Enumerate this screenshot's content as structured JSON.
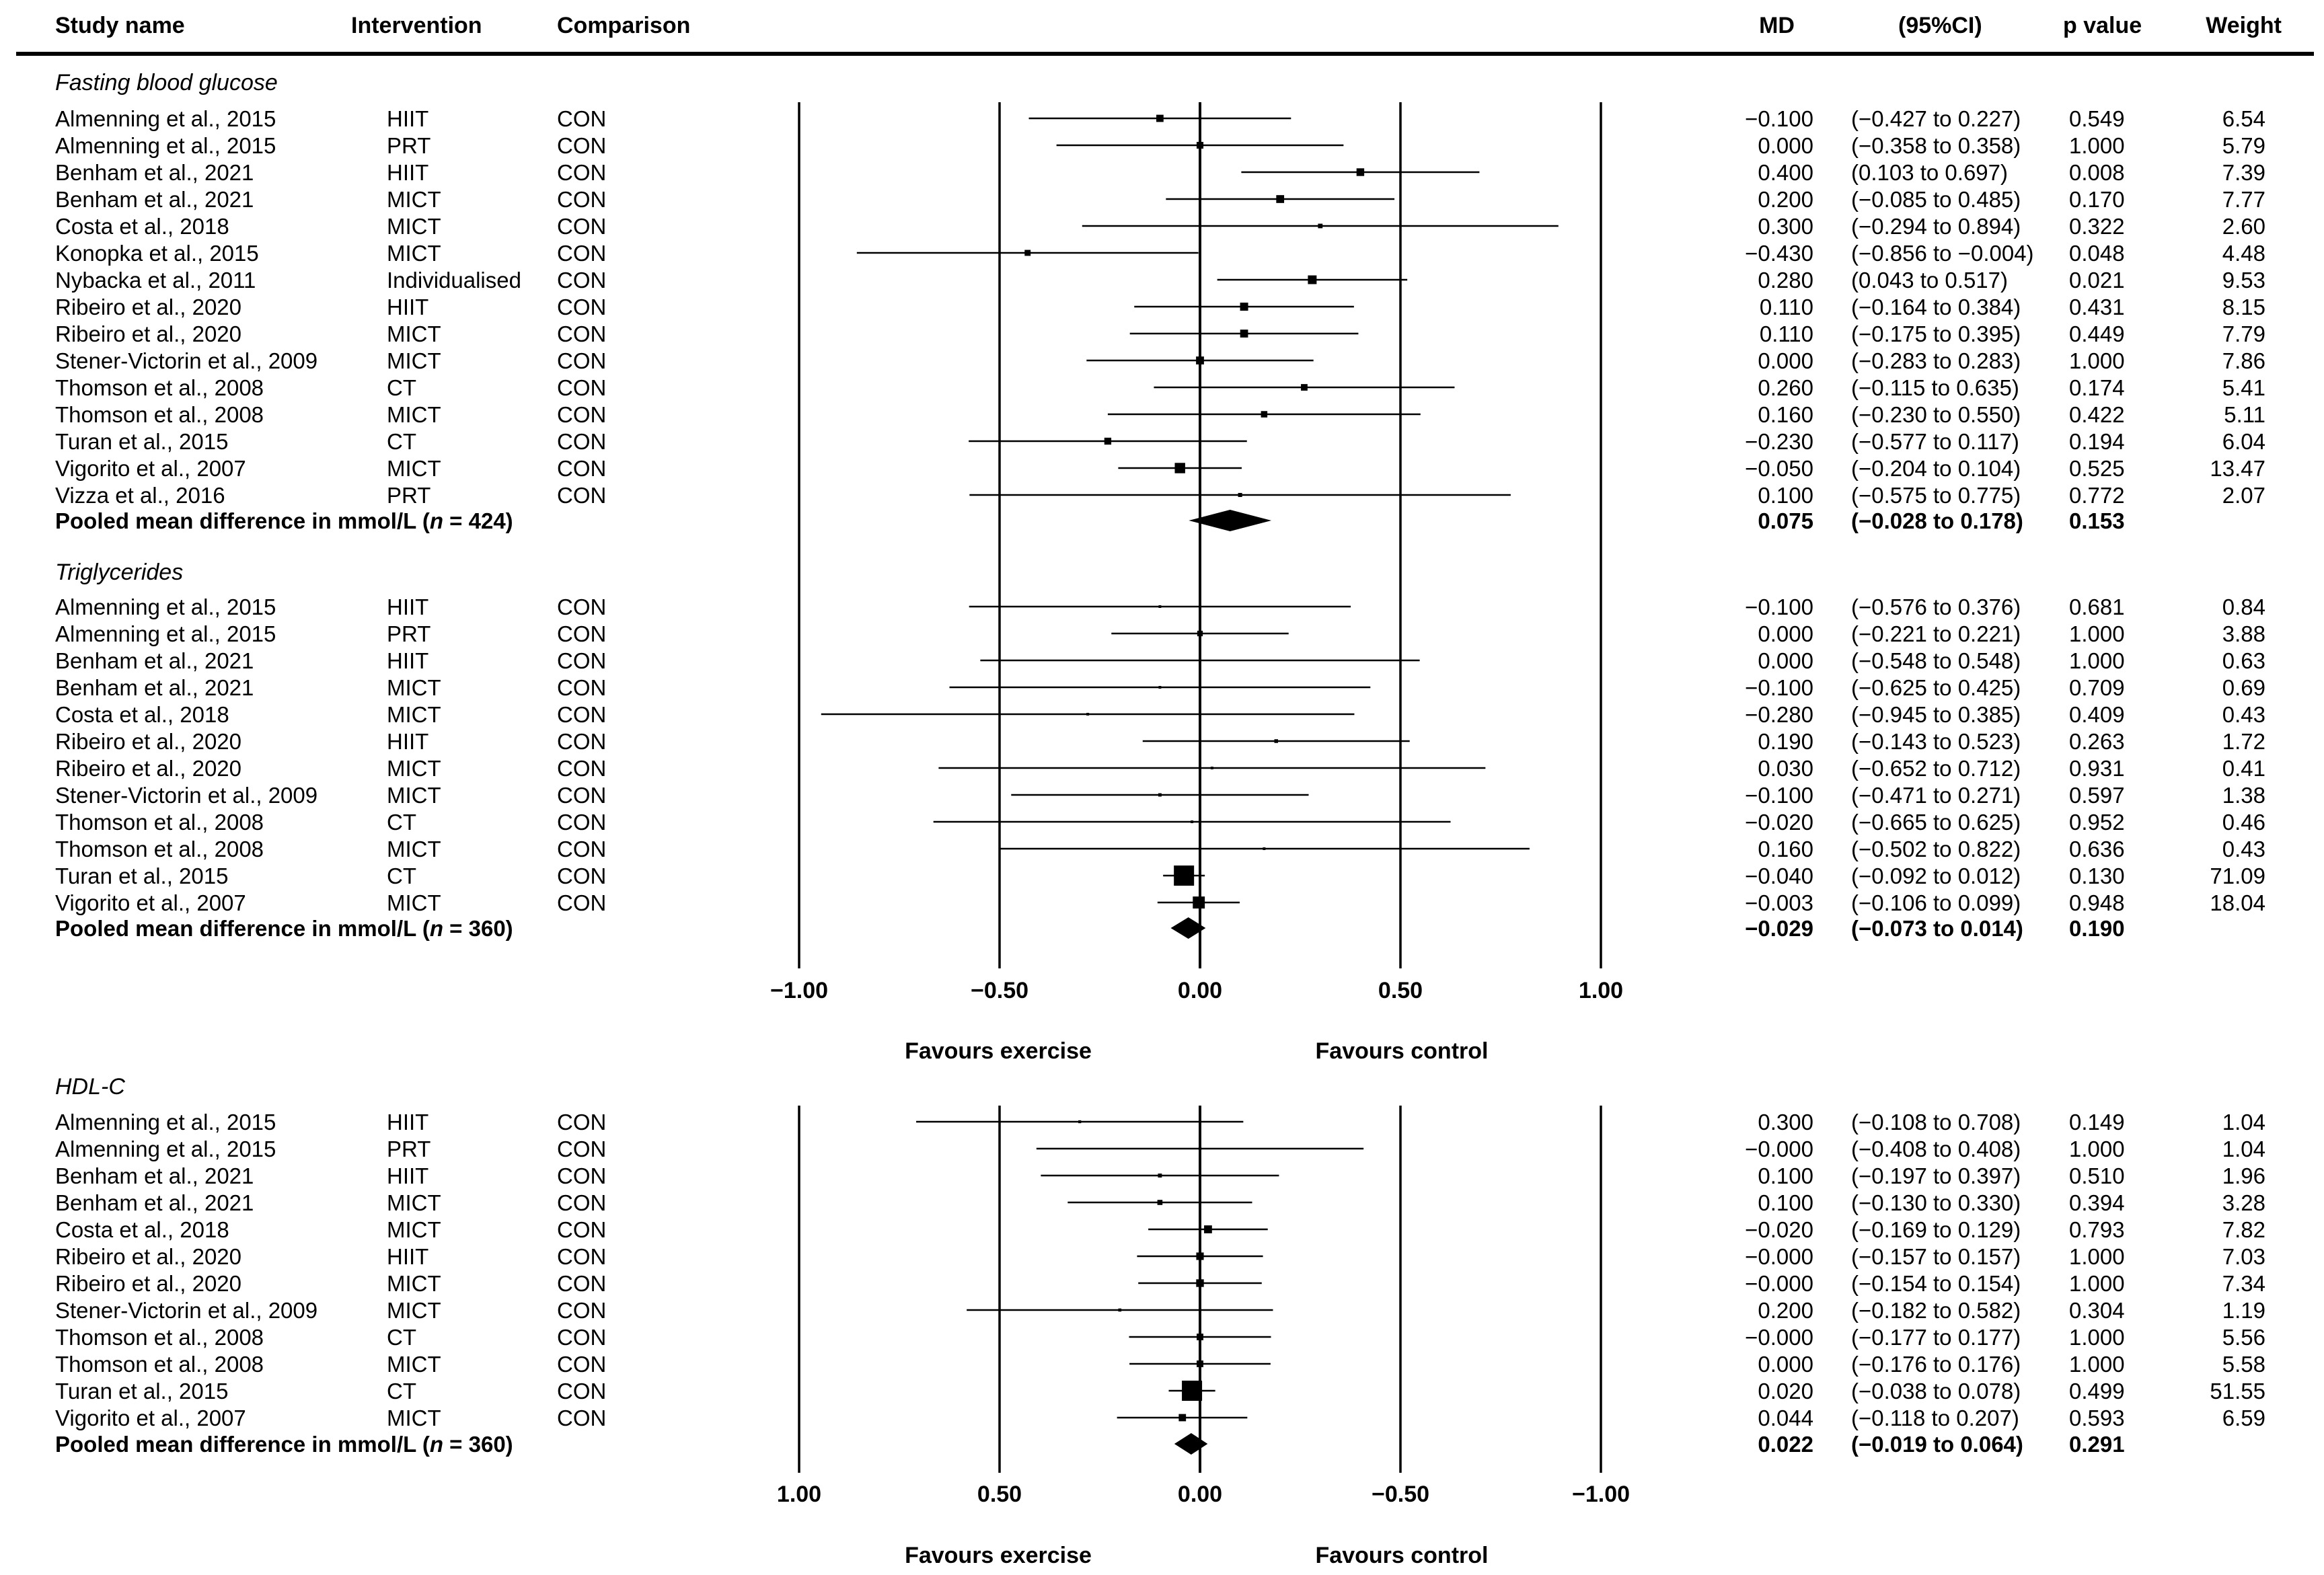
{
  "header": {
    "study_name": "Study name",
    "intervention": "Intervention",
    "comparison": "Comparison",
    "md": "MD",
    "ci": "(95%CI)",
    "p": "p value",
    "weight": "Weight"
  },
  "chart_data": [
    {
      "type": "forest",
      "title": "Fasting blood glucose",
      "xlim": [
        -1.0,
        1.0
      ],
      "reversed": false,
      "ticks": [
        -1.0,
        -0.5,
        0.0,
        0.5,
        1.0
      ],
      "tick_labels": [
        "−1.00",
        "−0.50",
        "0.00",
        "0.50",
        "1.00"
      ],
      "favours_left": "Favours exercise",
      "favours_right": "Favours control",
      "rows": [
        {
          "study": "Almenning et al., 2015",
          "intervention": "HIIT",
          "comparison": "CON",
          "md": -0.1,
          "lo": -0.427,
          "hi": 0.227,
          "md_text": "−0.100",
          "ci_text": "(−0.427 to 0.227)",
          "p": "0.549",
          "weight": "6.54"
        },
        {
          "study": "Almenning et al., 2015",
          "intervention": "PRT",
          "comparison": "CON",
          "md": 0.0,
          "lo": -0.358,
          "hi": 0.358,
          "md_text": "0.000",
          "ci_text": "(−0.358 to 0.358)",
          "p": "1.000",
          "weight": "5.79"
        },
        {
          "study": "Benham et al., 2021",
          "intervention": "HIIT",
          "comparison": "CON",
          "md": 0.4,
          "lo": 0.103,
          "hi": 0.697,
          "md_text": "0.400",
          "ci_text": "(0.103 to 0.697)",
          "p": "0.008",
          "weight": "7.39"
        },
        {
          "study": "Benham et al., 2021",
          "intervention": "MICT",
          "comparison": "CON",
          "md": 0.2,
          "lo": -0.085,
          "hi": 0.485,
          "md_text": "0.200",
          "ci_text": "(−0.085 to 0.485)",
          "p": "0.170",
          "weight": "7.77"
        },
        {
          "study": "Costa et al., 2018",
          "intervention": "MICT",
          "comparison": "CON",
          "md": 0.3,
          "lo": -0.294,
          "hi": 0.894,
          "md_text": "0.300",
          "ci_text": "(−0.294 to 0.894)",
          "p": "0.322",
          "weight": "2.60"
        },
        {
          "study": "Konopka et al., 2015",
          "intervention": "MICT",
          "comparison": "CON",
          "md": -0.43,
          "lo": -0.856,
          "hi": -0.004,
          "md_text": "−0.430",
          "ci_text": "(−0.856 to −0.004)",
          "p": "0.048",
          "weight": "4.48"
        },
        {
          "study": "Nybacka et al., 2011",
          "intervention": "Individualised",
          "comparison": "CON",
          "md": 0.28,
          "lo": 0.043,
          "hi": 0.517,
          "md_text": "0.280",
          "ci_text": "(0.043 to 0.517)",
          "p": "0.021",
          "weight": "9.53"
        },
        {
          "study": "Ribeiro et al., 2020",
          "intervention": "HIIT",
          "comparison": "CON",
          "md": 0.11,
          "lo": -0.164,
          "hi": 0.384,
          "md_text": "0.110",
          "ci_text": "(−0.164 to 0.384)",
          "p": "0.431",
          "weight": "8.15"
        },
        {
          "study": "Ribeiro et al., 2020",
          "intervention": "MICT",
          "comparison": "CON",
          "md": 0.11,
          "lo": -0.175,
          "hi": 0.395,
          "md_text": "0.110",
          "ci_text": "(−0.175 to 0.395)",
          "p": "0.449",
          "weight": "7.79"
        },
        {
          "study": "Stener-Victorin et al., 2009",
          "intervention": "MICT",
          "comparison": "CON",
          "md": 0.0,
          "lo": -0.283,
          "hi": 0.283,
          "md_text": "0.000",
          "ci_text": "(−0.283 to 0.283)",
          "p": "1.000",
          "weight": "7.86"
        },
        {
          "study": "Thomson et al., 2008",
          "intervention": "CT",
          "comparison": "CON",
          "md": 0.26,
          "lo": -0.115,
          "hi": 0.635,
          "md_text": "0.260",
          "ci_text": "(−0.115 to 0.635)",
          "p": "0.174",
          "weight": "5.41"
        },
        {
          "study": "Thomson et al., 2008",
          "intervention": "MICT",
          "comparison": "CON",
          "md": 0.16,
          "lo": -0.23,
          "hi": 0.55,
          "md_text": "0.160",
          "ci_text": "(−0.230 to 0.550)",
          "p": "0.422",
          "weight": "5.11"
        },
        {
          "study": "Turan et al., 2015",
          "intervention": "CT",
          "comparison": "CON",
          "md": -0.23,
          "lo": -0.577,
          "hi": 0.117,
          "md_text": "−0.230",
          "ci_text": "(−0.577 to 0.117)",
          "p": "0.194",
          "weight": "6.04"
        },
        {
          "study": "Vigorito et al., 2007",
          "intervention": "MICT",
          "comparison": "CON",
          "md": -0.05,
          "lo": -0.204,
          "hi": 0.104,
          "md_text": "−0.050",
          "ci_text": "(−0.204 to 0.104)",
          "p": "0.525",
          "weight": "13.47"
        },
        {
          "study": "Vizza et al., 2016",
          "intervention": "PRT",
          "comparison": "CON",
          "md": 0.1,
          "lo": -0.575,
          "hi": 0.775,
          "md_text": "0.100",
          "ci_text": "(−0.575 to 0.775)",
          "p": "0.772",
          "weight": "2.07"
        }
      ],
      "pooled": {
        "label_pre": "Pooled mean difference in mmol/L (",
        "label_n": "n",
        "label_post": " = 424)",
        "md": 0.075,
        "lo": -0.028,
        "hi": 0.178,
        "md_text": "0.075",
        "ci_text": "(−0.028 to 0.178)",
        "p": "0.153"
      }
    },
    {
      "type": "forest",
      "title": "Triglycerides",
      "xlim": [
        -1.0,
        1.0
      ],
      "reversed": false,
      "rows": [
        {
          "study": "Almenning et al., 2015",
          "intervention": "HIIT",
          "comparison": "CON",
          "md": -0.1,
          "lo": -0.576,
          "hi": 0.376,
          "md_text": "−0.100",
          "ci_text": "(−0.576 to 0.376)",
          "p": "0.681",
          "weight": "0.84"
        },
        {
          "study": "Almenning et al., 2015",
          "intervention": "PRT",
          "comparison": "CON",
          "md": 0.0,
          "lo": -0.221,
          "hi": 0.221,
          "md_text": "0.000",
          "ci_text": "(−0.221 to 0.221)",
          "p": "1.000",
          "weight": "3.88"
        },
        {
          "study": "Benham et al., 2021",
          "intervention": "HIIT",
          "comparison": "CON",
          "md": 0.0,
          "lo": -0.548,
          "hi": 0.548,
          "md_text": "0.000",
          "ci_text": "(−0.548 to 0.548)",
          "p": "1.000",
          "weight": "0.63"
        },
        {
          "study": "Benham et al., 2021",
          "intervention": "MICT",
          "comparison": "CON",
          "md": -0.1,
          "lo": -0.625,
          "hi": 0.425,
          "md_text": "−0.100",
          "ci_text": "(−0.625 to 0.425)",
          "p": "0.709",
          "weight": "0.69"
        },
        {
          "study": "Costa et al., 2018",
          "intervention": "MICT",
          "comparison": "CON",
          "md": -0.28,
          "lo": -0.945,
          "hi": 0.385,
          "md_text": "−0.280",
          "ci_text": "(−0.945 to 0.385)",
          "p": "0.409",
          "weight": "0.43"
        },
        {
          "study": "Ribeiro et al., 2020",
          "intervention": "HIIT",
          "comparison": "CON",
          "md": 0.19,
          "lo": -0.143,
          "hi": 0.523,
          "md_text": "0.190",
          "ci_text": "(−0.143 to 0.523)",
          "p": "0.263",
          "weight": "1.72"
        },
        {
          "study": "Ribeiro et al., 2020",
          "intervention": "MICT",
          "comparison": "CON",
          "md": 0.03,
          "lo": -0.652,
          "hi": 0.712,
          "md_text": "0.030",
          "ci_text": "(−0.652 to 0.712)",
          "p": "0.931",
          "weight": "0.41"
        },
        {
          "study": "Stener-Victorin et al., 2009",
          "intervention": "MICT",
          "comparison": "CON",
          "md": -0.1,
          "lo": -0.471,
          "hi": 0.271,
          "md_text": "−0.100",
          "ci_text": "(−0.471 to 0.271)",
          "p": "0.597",
          "weight": "1.38"
        },
        {
          "study": "Thomson et al., 2008",
          "intervention": "CT",
          "comparison": "CON",
          "md": -0.02,
          "lo": -0.665,
          "hi": 0.625,
          "md_text": "−0.020",
          "ci_text": "(−0.665 to 0.625)",
          "p": "0.952",
          "weight": "0.46"
        },
        {
          "study": "Thomson et al., 2008",
          "intervention": "MICT",
          "comparison": "CON",
          "md": 0.16,
          "lo": -0.502,
          "hi": 0.822,
          "md_text": "0.160",
          "ci_text": "(−0.502 to 0.822)",
          "p": "0.636",
          "weight": "0.43"
        },
        {
          "study": "Turan et al., 2015",
          "intervention": "CT",
          "comparison": "CON",
          "md": -0.04,
          "lo": -0.092,
          "hi": 0.012,
          "md_text": "−0.040",
          "ci_text": "(−0.092 to 0.012)",
          "p": "0.130",
          "weight": "71.09"
        },
        {
          "study": "Vigorito et al., 2007",
          "intervention": "MICT",
          "comparison": "CON",
          "md": -0.003,
          "lo": -0.106,
          "hi": 0.099,
          "md_text": "−0.003",
          "ci_text": "(−0.106 to 0.099)",
          "p": "0.948",
          "weight": "18.04"
        }
      ],
      "pooled": {
        "label_pre": "Pooled mean difference in mmol/L (",
        "label_n": "n",
        "label_post": " = 360)",
        "md": -0.029,
        "lo": -0.073,
        "hi": 0.014,
        "md_text": "−0.029",
        "ci_text": "(−0.073 to 0.014)",
        "p": "0.190"
      }
    },
    {
      "type": "forest",
      "title": "HDL-C",
      "xlim": [
        1.0,
        -1.0
      ],
      "reversed": true,
      "ticks": [
        1.0,
        0.5,
        0.0,
        -0.5,
        -1.0
      ],
      "tick_labels": [
        "1.00",
        "0.50",
        "0.00",
        "−0.50",
        "−1.00"
      ],
      "favours_left": "Favours exercise",
      "favours_right": "Favours control",
      "rows": [
        {
          "study": "Almenning et al., 2015",
          "intervention": "HIIT",
          "comparison": "CON",
          "md": 0.3,
          "lo": -0.108,
          "hi": 0.708,
          "md_text": "0.300",
          "ci_text": "(−0.108 to 0.708)",
          "p": "0.149",
          "weight": "1.04"
        },
        {
          "study": "Almenning et al., 2015",
          "intervention": "PRT",
          "comparison": "CON",
          "md": 0.0,
          "lo": -0.408,
          "hi": 0.408,
          "md_text": "−0.000",
          "ci_text": "(−0.408 to 0.408)",
          "p": "1.000",
          "weight": "1.04"
        },
        {
          "study": "Benham et al., 2021",
          "intervention": "HIIT",
          "comparison": "CON",
          "md": 0.1,
          "lo": -0.197,
          "hi": 0.397,
          "md_text": "0.100",
          "ci_text": "(−0.197 to 0.397)",
          "p": "0.510",
          "weight": "1.96"
        },
        {
          "study": "Benham et al., 2021",
          "intervention": "MICT",
          "comparison": "CON",
          "md": 0.1,
          "lo": -0.13,
          "hi": 0.33,
          "md_text": "0.100",
          "ci_text": "(−0.130 to 0.330)",
          "p": "0.394",
          "weight": "3.28"
        },
        {
          "study": "Costa et al., 2018",
          "intervention": "MICT",
          "comparison": "CON",
          "md": -0.02,
          "lo": -0.169,
          "hi": 0.129,
          "md_text": "−0.020",
          "ci_text": "(−0.169 to 0.129)",
          "p": "0.793",
          "weight": "7.82"
        },
        {
          "study": "Ribeiro et al., 2020",
          "intervention": "HIIT",
          "comparison": "CON",
          "md": 0.0,
          "lo": -0.157,
          "hi": 0.157,
          "md_text": "−0.000",
          "ci_text": "(−0.157 to 0.157)",
          "p": "1.000",
          "weight": "7.03"
        },
        {
          "study": "Ribeiro et al., 2020",
          "intervention": "MICT",
          "comparison": "CON",
          "md": 0.0,
          "lo": -0.154,
          "hi": 0.154,
          "md_text": "−0.000",
          "ci_text": "(−0.154 to 0.154)",
          "p": "1.000",
          "weight": "7.34"
        },
        {
          "study": "Stener-Victorin et al., 2009",
          "intervention": "MICT",
          "comparison": "CON",
          "md": 0.2,
          "lo": -0.182,
          "hi": 0.582,
          "md_text": "0.200",
          "ci_text": "(−0.182 to 0.582)",
          "p": "0.304",
          "weight": "1.19"
        },
        {
          "study": "Thomson et al., 2008",
          "intervention": "CT",
          "comparison": "CON",
          "md": 0.0,
          "lo": -0.177,
          "hi": 0.177,
          "md_text": "−0.000",
          "ci_text": "(−0.177 to 0.177)",
          "p": "1.000",
          "weight": "5.56"
        },
        {
          "study": "Thomson et al., 2008",
          "intervention": "MICT",
          "comparison": "CON",
          "md": 0.0,
          "lo": -0.176,
          "hi": 0.176,
          "md_text": "0.000",
          "ci_text": "(−0.176 to 0.176)",
          "p": "1.000",
          "weight": "5.58"
        },
        {
          "study": "Turan et al., 2015",
          "intervention": "CT",
          "comparison": "CON",
          "md": 0.02,
          "lo": -0.038,
          "hi": 0.078,
          "md_text": "0.020",
          "ci_text": "(−0.038 to 0.078)",
          "p": "0.499",
          "weight": "51.55"
        },
        {
          "study": "Vigorito et al., 2007",
          "intervention": "MICT",
          "comparison": "CON",
          "md": 0.044,
          "lo": -0.118,
          "hi": 0.207,
          "md_text": "0.044",
          "ci_text": "(−0.118 to 0.207)",
          "p": "0.593",
          "weight": "6.59"
        }
      ],
      "pooled": {
        "label_pre": "Pooled mean difference in mmol/L (",
        "label_n": "n",
        "label_post": " = 360)",
        "md": 0.022,
        "lo": -0.019,
        "hi": 0.064,
        "md_text": "0.022",
        "ci_text": "(−0.019 to 0.064)",
        "p": "0.291"
      }
    }
  ]
}
